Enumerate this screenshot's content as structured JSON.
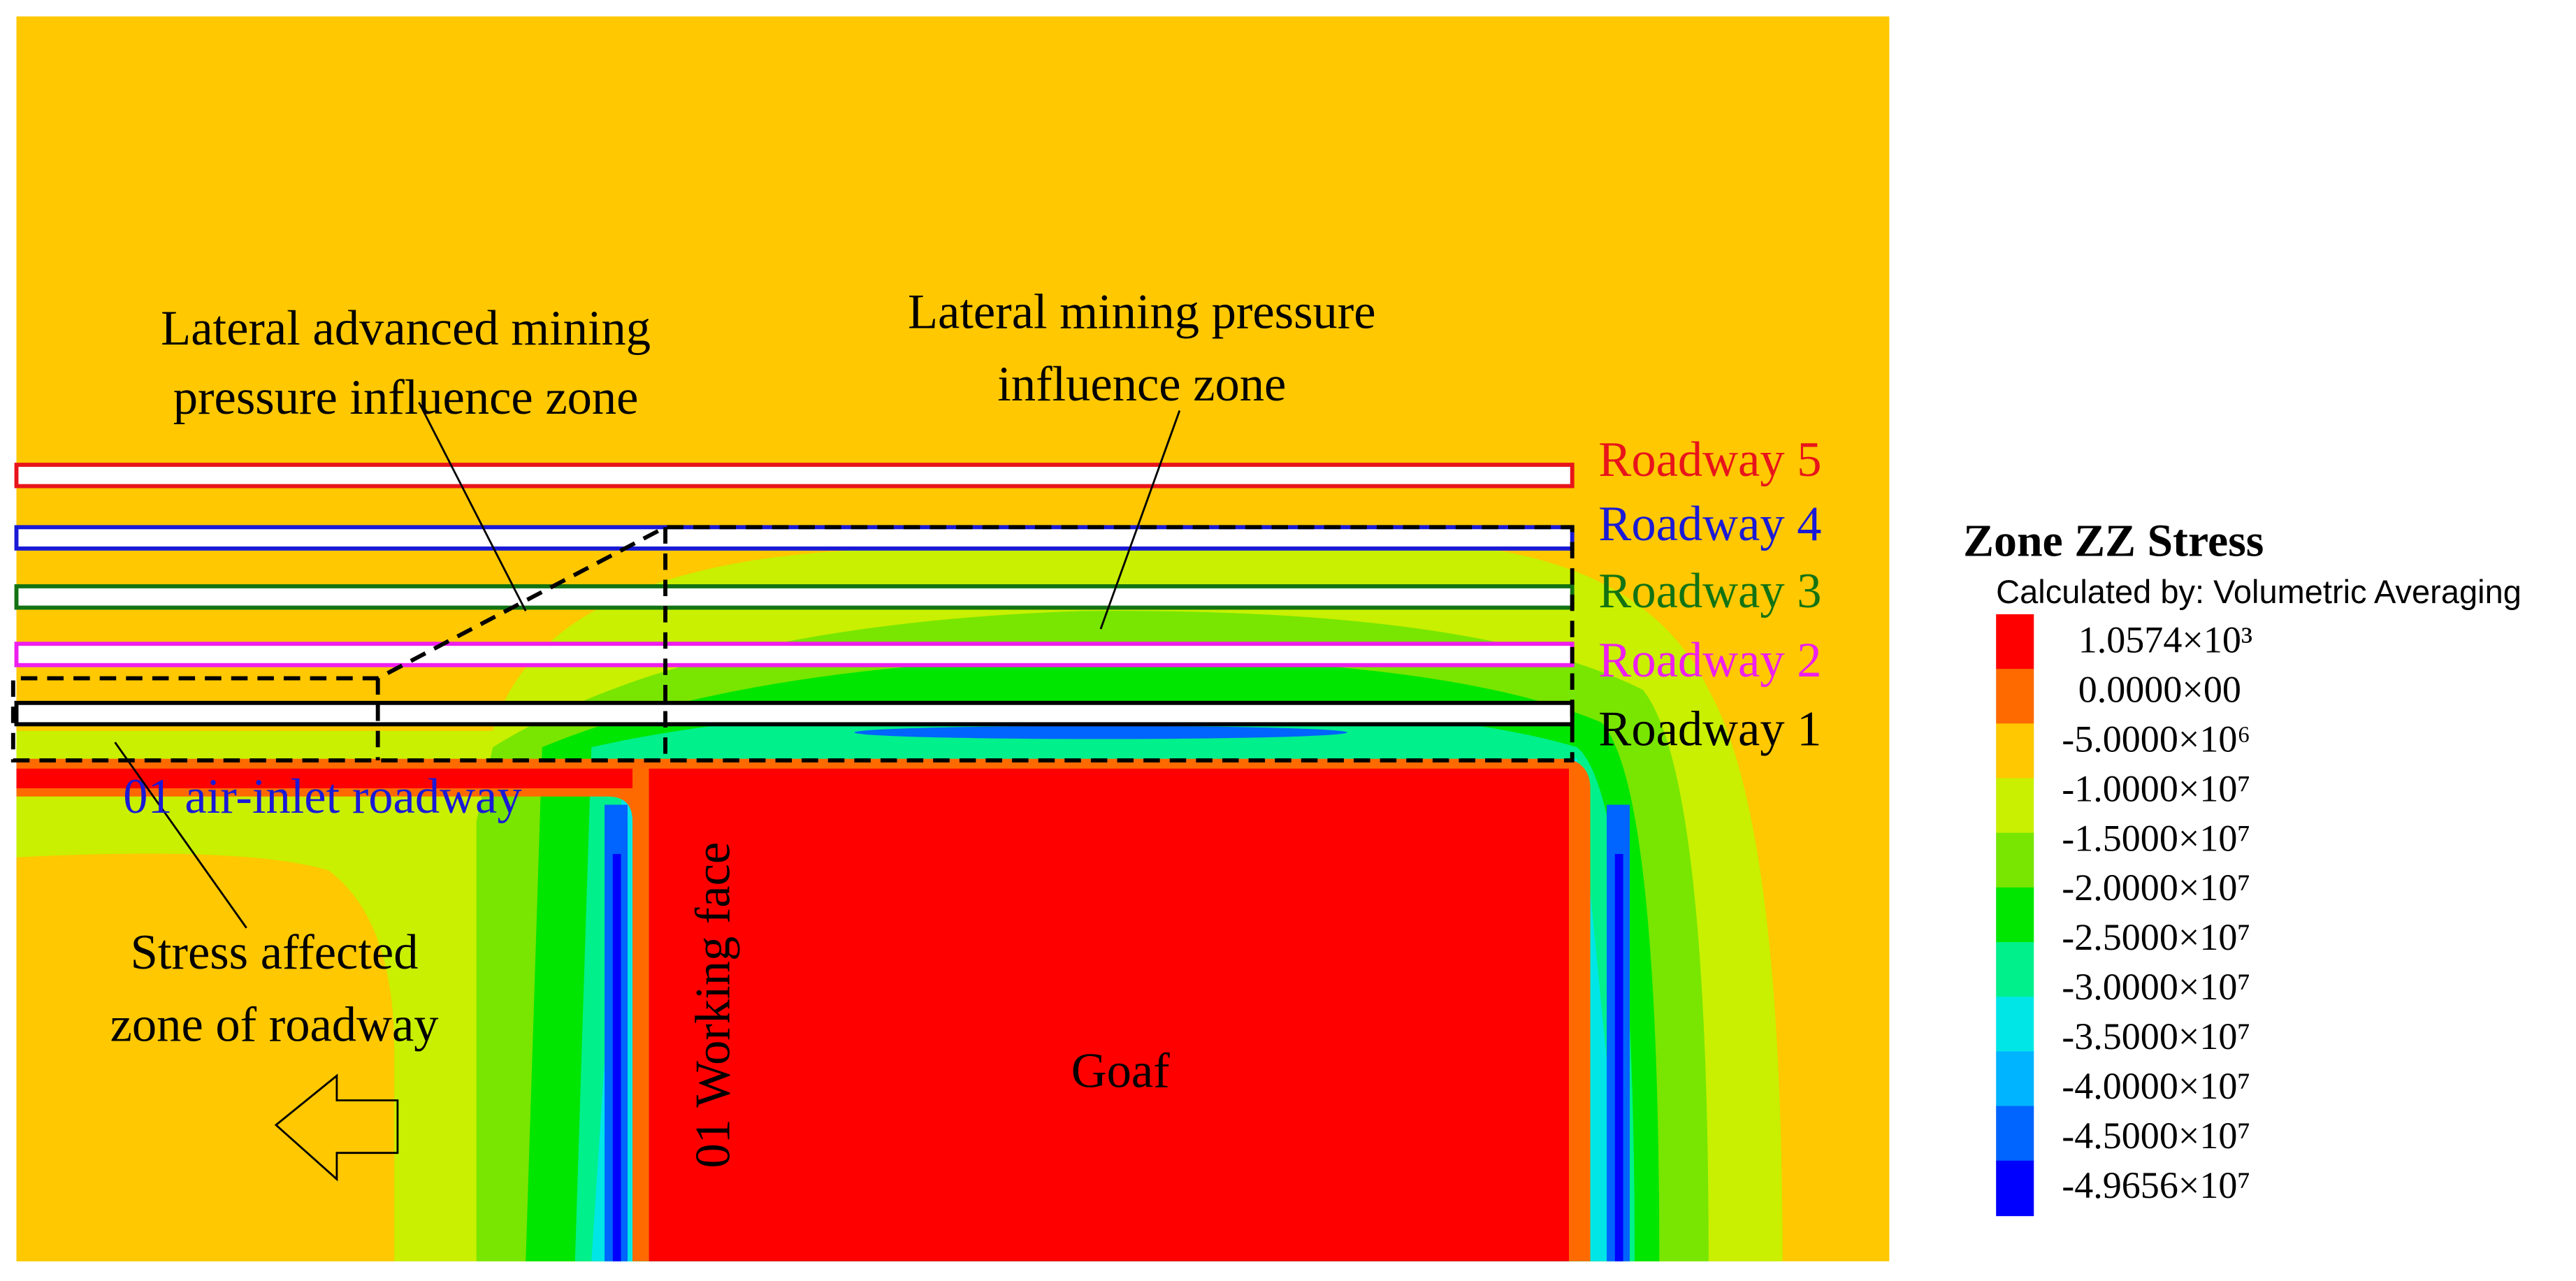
{
  "annotations": {
    "advanced_zone": [
      "Lateral advanced mining",
      "pressure influence zone"
    ],
    "mining_zone": [
      "Lateral mining pressure",
      "influence zone"
    ],
    "air_inlet": "01 air-inlet roadway",
    "working_face": "01 Working face",
    "stress_zone": [
      "Stress affected",
      "zone of roadway"
    ],
    "goaf": "Goaf"
  },
  "roadways": [
    {
      "label": "Roadway 5",
      "color": "#e8141b"
    },
    {
      "label": "Roadway 4",
      "color": "#1a1ad6"
    },
    {
      "label": "Roadway 3",
      "color": "#137313"
    },
    {
      "label": "Roadway 2",
      "color": "#ee1fee"
    },
    {
      "label": "Roadway 1",
      "color": "#000000"
    }
  ],
  "legend": {
    "title": "Zone ZZ Stress",
    "subtitle": "Calculated by: Volumetric Averaging",
    "colors": [
      "#ff0000",
      "#ff6a00",
      "#ffc800",
      "#c8f000",
      "#78e600",
      "#00e600",
      "#00f08c",
      "#00e6e6",
      "#00b4ff",
      "#0064ff",
      "#0000ff"
    ],
    "labels": [
      "1.0574×10³",
      "0.0000×00",
      "-5.0000×10⁶",
      "-1.0000×10⁷",
      "-1.5000×10⁷",
      "-2.0000×10⁷",
      "-2.5000×10⁷",
      "-3.0000×10⁷",
      "-3.5000×10⁷",
      "-4.0000×10⁷",
      "-4.5000×10⁷",
      "-4.9656×10⁷"
    ]
  }
}
